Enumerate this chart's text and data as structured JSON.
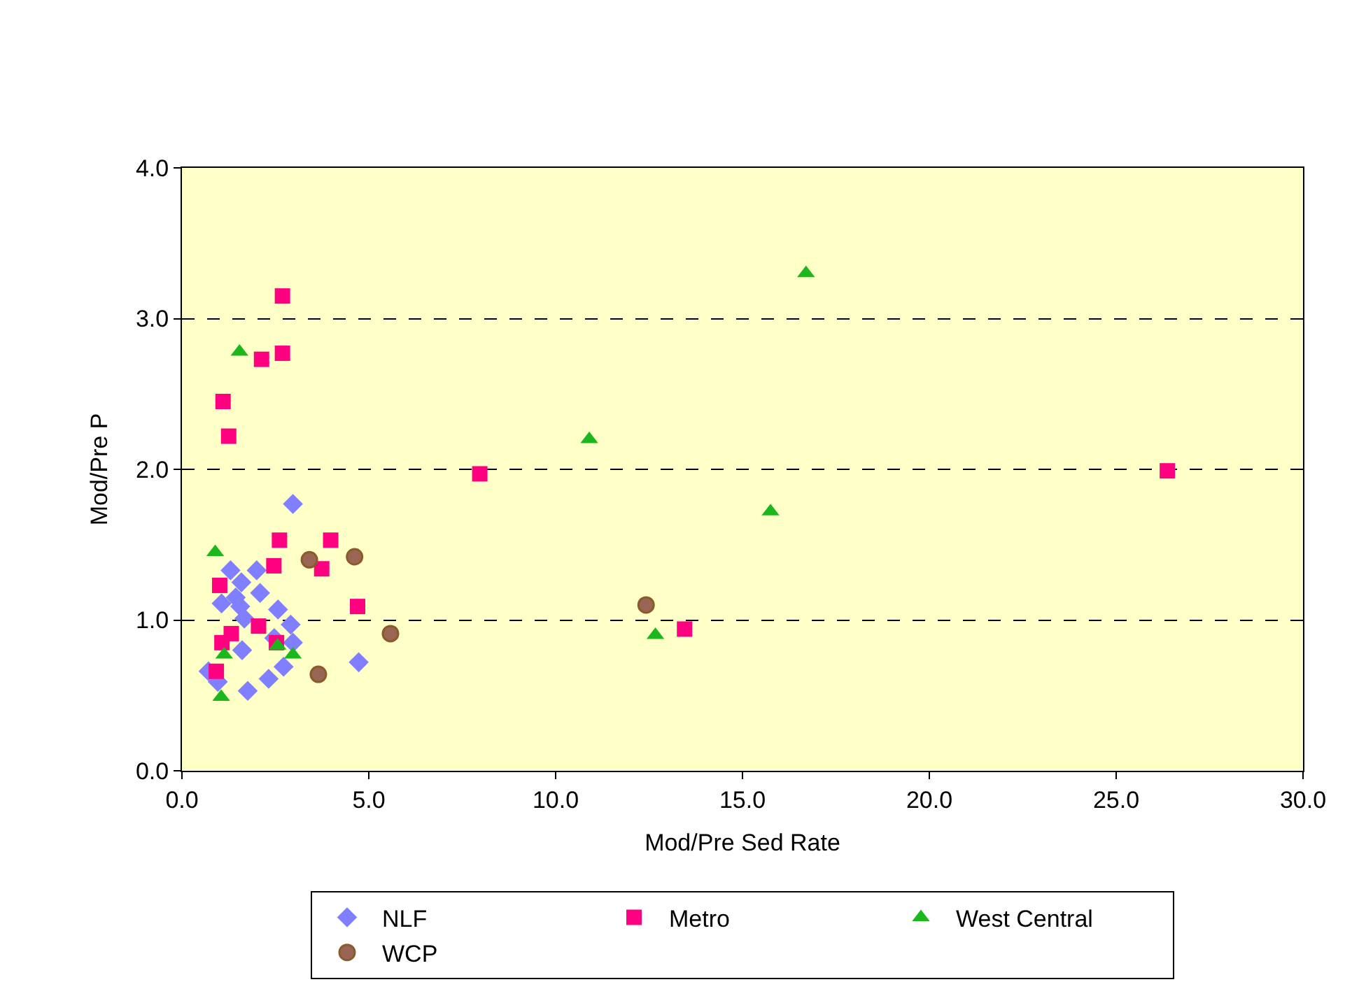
{
  "chart_data": {
    "type": "scatter",
    "xlabel": "Mod/Pre Sed Rate",
    "ylabel": "Mod/Pre P",
    "xlim": [
      0,
      30
    ],
    "xticks": [
      {
        "value": 0,
        "label": "0.0"
      },
      {
        "value": 5,
        "label": "5.0"
      },
      {
        "value": 10,
        "label": "10.0"
      },
      {
        "value": 15,
        "label": "15.0"
      },
      {
        "value": 20,
        "label": "20.0"
      },
      {
        "value": 25,
        "label": "25.0"
      },
      {
        "value": 30,
        "label": "30.0"
      }
    ],
    "ylim": [
      0,
      4
    ],
    "yticks": [
      {
        "value": 0,
        "label": "0.0"
      },
      {
        "value": 1,
        "label": "1.0"
      },
      {
        "value": 2,
        "label": "2.0"
      },
      {
        "value": 3,
        "label": "3.0"
      },
      {
        "value": 4,
        "label": "4.0"
      }
    ],
    "grid": "y",
    "legend": "bottom",
    "series": [
      {
        "name": "NLF",
        "color": "#7f7fff",
        "marker": "diamond",
        "x": [
          2.97,
          1.3,
          2.0,
          1.59,
          2.09,
          1.06,
          1.44,
          1.56,
          1.67,
          2.57,
          2.91,
          2.47,
          2.97,
          1.61,
          2.72,
          4.73,
          2.32,
          1.76,
          0.71,
          0.96
        ],
        "values": [
          1.77,
          1.33,
          1.33,
          1.25,
          1.18,
          1.11,
          1.15,
          1.09,
          1.01,
          1.07,
          0.97,
          0.88,
          0.85,
          0.8,
          0.69,
          0.72,
          0.61,
          0.53,
          0.66,
          0.59
        ]
      },
      {
        "name": "Metro",
        "color": "#ff0080",
        "marker": "square",
        "x": [
          2.61,
          3.98,
          2.46,
          3.74,
          1.01,
          4.7,
          2.05,
          1.32,
          1.07,
          2.53,
          0.92,
          2.69,
          2.13,
          2.69,
          1.1,
          1.25,
          7.97,
          26.37,
          13.45
        ],
        "values": [
          1.53,
          1.53,
          1.36,
          1.34,
          1.23,
          1.09,
          0.96,
          0.91,
          0.85,
          0.85,
          0.66,
          3.15,
          2.73,
          2.77,
          2.45,
          2.22,
          1.97,
          1.99,
          0.94
        ]
      },
      {
        "name": "West Central",
        "color": "#1cb71c",
        "marker": "triangle",
        "x": [
          1.54,
          16.7,
          10.9,
          15.75,
          12.67,
          0.89,
          1.13,
          2.56,
          2.97,
          1.05
        ],
        "values": [
          2.78,
          3.3,
          2.2,
          1.72,
          0.9,
          1.45,
          0.77,
          0.83,
          0.77,
          0.49
        ]
      },
      {
        "name": "WCP",
        "color": "#996655",
        "marker": "circle",
        "x": [
          3.41,
          4.62,
          5.58,
          3.65,
          12.42
        ],
        "values": [
          1.4,
          1.42,
          0.91,
          0.64,
          1.1
        ]
      }
    ]
  }
}
